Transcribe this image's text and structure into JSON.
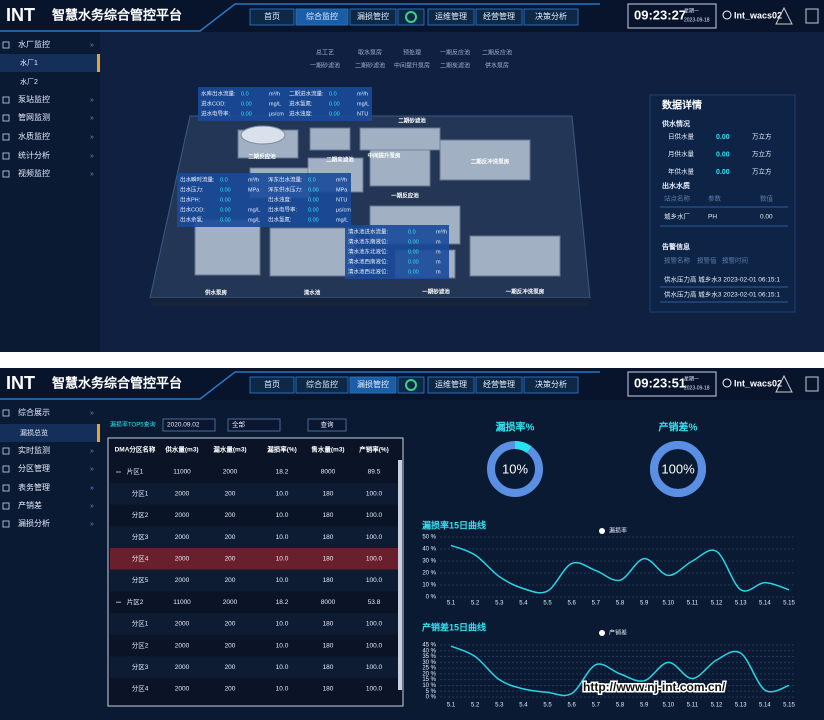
{
  "top": {
    "header": {
      "logo": "INT",
      "title": "智慧水务综合管控平台",
      "nav": [
        "首页",
        "综合监控",
        "漏损管控",
        "运维管理",
        "经营管理",
        "决策分析"
      ],
      "time": "09:23:27",
      "weekday": "星期一",
      "date": "2023-09-18",
      "user": "Int_wacs02"
    },
    "sidebar": {
      "items": [
        "水厂监控",
        "泵站监控",
        "管网监测",
        "水质监控",
        "统计分析",
        "视频监控"
      ],
      "sub": [
        "水厂1",
        "水厂2"
      ]
    },
    "process_tabs": [
      "总工艺",
      "取水泵房",
      "预处理",
      "一期反应池",
      "二期反应池",
      "一期砂滤池",
      "二期砂滤池",
      "中间提升泵房",
      "二期炭滤池",
      "供水泵房"
    ],
    "scene_labels": [
      "供水泵房",
      "清水池",
      "一期砂滤池",
      "一期反冲洗泵房",
      "二期砂滤池",
      "二期反应池",
      "一期反应池",
      "中间提升泵房",
      "二期炭滤池",
      "二期反冲洗泵房"
    ],
    "overlays": [
      {
        "cols": [
          [
            [
              "水库出水流量:",
              "0.0",
              "m³/h"
            ],
            [
              "进水COD:",
              "0.00",
              "mg/L"
            ],
            [
              "进水电导率:",
              "0.00",
              "μs/cm"
            ]
          ],
          [
            [
              "二期进水流量:",
              "0.0",
              "m³/h"
            ],
            [
              "进水氯氮:",
              "0.00",
              "mg/L"
            ],
            [
              "进水浊度:",
              "0.00",
              "NTU"
            ]
          ]
        ]
      },
      {
        "cols": [
          [
            [
              "出水瞬时流量:",
              "0.0",
              "m³/h"
            ],
            [
              "出水压力:",
              "0.00",
              "MPa"
            ],
            [
              "出水PH:",
              "0.00",
              ""
            ],
            [
              "出水COD:",
              "0.00",
              "mg/L"
            ],
            [
              "出水余氯:",
              "0.00",
              "mg/L"
            ]
          ],
          [
            [
              "浑东出水流量:",
              "0.0",
              "m³/h"
            ],
            [
              "浑东供水压力:",
              "0.00",
              "MPa"
            ],
            [
              "出水浊度:",
              "0.00",
              "NTU"
            ],
            [
              "出水电导率:",
              "0.00",
              "μs/cm"
            ],
            [
              "出水氯氮:",
              "0.00",
              "mg/L"
            ]
          ]
        ]
      },
      {
        "cols": [
          [
            [
              "清水池进水流量:",
              "0.0",
              "m³/h"
            ],
            [
              "清水池东南液位:",
              "0.00",
              "m"
            ],
            [
              "清水池东北液位:",
              "0.00",
              "m"
            ],
            [
              "清水池西南液位:",
              "0.00",
              "m"
            ],
            [
              "清水池西北液位:",
              "0.00",
              "m"
            ]
          ]
        ]
      }
    ],
    "details": {
      "title": "数据详情",
      "supply_title": "供水情况",
      "supply": [
        [
          "日供水量",
          "0.00",
          "万立方"
        ],
        [
          "月供水量",
          "0.00",
          "万立方"
        ],
        [
          "年供水量",
          "0.00",
          "万立方"
        ]
      ],
      "outlet_title": "出水水质",
      "outlet_headers": [
        "站点名称",
        "参数",
        "数值"
      ],
      "outlet_rows": [
        [
          "城乡水厂",
          "PH",
          "0.00"
        ]
      ],
      "alarm_title": "告警信息",
      "alarm_headers": [
        "报警名称",
        "报警值",
        "报警时间"
      ],
      "alarms": [
        "供水压力高 城乡水3 2023-02-01 06:15:1",
        "供水压力高 城乡水3 2023-02-01 06:15:1"
      ]
    }
  },
  "bottom": {
    "header": {
      "logo": "INT",
      "title": "智慧水务综合管控平台",
      "nav": [
        "首页",
        "综合监控",
        "漏损管控",
        "运维管理",
        "经营管理",
        "决策分析"
      ],
      "time": "09:23:51",
      "weekday": "星期一",
      "date": "2023-09-18",
      "user": "Int_wacs02"
    },
    "sidebar": {
      "items": [
        "综合展示",
        "实时监测",
        "分区管理",
        "表务管理",
        "产销差",
        "漏损分析"
      ],
      "sub": [
        "漏损总览"
      ]
    },
    "filter": {
      "label": "漏损率TOP5查询",
      "date": "2020.09.02",
      "select": "全部",
      "button": "查询"
    },
    "table": {
      "headers": [
        "DMA分区名称",
        "供水量(m3)",
        "漏水量(m3)",
        "漏损率(%)",
        "售水量(m3)",
        "产销率(%)"
      ],
      "highlight_row": 4,
      "rows": [
        {
          "group": true,
          "cells": [
            "片区1",
            "11000",
            "2000",
            "18.2",
            "8000",
            "89.5"
          ]
        },
        {
          "group": false,
          "cells": [
            "分区1",
            "2000",
            "200",
            "10.0",
            "180",
            "100.0"
          ]
        },
        {
          "group": false,
          "cells": [
            "分区2",
            "2000",
            "200",
            "10.0",
            "180",
            "100.0"
          ]
        },
        {
          "group": false,
          "cells": [
            "分区3",
            "2000",
            "200",
            "10.0",
            "180",
            "100.0"
          ]
        },
        {
          "group": false,
          "cells": [
            "分区4",
            "2000",
            "200",
            "10.0",
            "180",
            "100.0"
          ]
        },
        {
          "group": false,
          "cells": [
            "分区5",
            "2000",
            "200",
            "10.0",
            "180",
            "100.0"
          ]
        },
        {
          "group": true,
          "cells": [
            "片区2",
            "11000",
            "2000",
            "18.2",
            "8000",
            "53.8"
          ]
        },
        {
          "group": false,
          "cells": [
            "分区1",
            "2000",
            "200",
            "10.0",
            "180",
            "100.0"
          ]
        },
        {
          "group": false,
          "cells": [
            "分区2",
            "2000",
            "200",
            "10.0",
            "180",
            "100.0"
          ]
        },
        {
          "group": false,
          "cells": [
            "分区3",
            "2000",
            "200",
            "10.0",
            "180",
            "100.0"
          ]
        },
        {
          "group": false,
          "cells": [
            "分区4",
            "2000",
            "200",
            "10.0",
            "180",
            "100.0"
          ]
        }
      ]
    },
    "rates": [
      {
        "title": "漏损率%",
        "value": 10,
        "value_label": "10%",
        "color": "#27e3f2",
        "track": "#5a8fe3"
      },
      {
        "title": "产销差%",
        "value": 100,
        "value_label": "100%",
        "color": "#5a8fe3",
        "track": "#5a8fe3"
      }
    ],
    "curves": [
      {
        "type": "line",
        "title": "漏损率15日曲线",
        "legend": "漏损率",
        "color": "#2ad4e6",
        "x": [
          "5.1",
          "5.2",
          "5.3",
          "5.4",
          "5.5",
          "5.6",
          "5.7",
          "5.8",
          "5.9",
          "5.10",
          "5.11",
          "5.12",
          "5.13",
          "5.14",
          "5.15"
        ],
        "values": [
          43,
          35,
          17,
          7,
          5,
          28,
          22,
          14,
          32,
          18,
          30,
          38,
          6,
          12,
          6
        ],
        "ylim": [
          0,
          50
        ],
        "yticks": [
          {
            "value": 0,
            "label": "0 %"
          },
          {
            "value": 10,
            "label": "10 %"
          },
          {
            "value": 20,
            "label": "20 %"
          },
          {
            "value": 30,
            "label": "30 %"
          },
          {
            "value": 40,
            "label": "40 %"
          },
          {
            "value": 50,
            "label": "50 %"
          }
        ]
      },
      {
        "type": "line",
        "title": "产销差15日曲线",
        "legend": "产销差",
        "color": "#2ad4e6",
        "x": [
          "5.1",
          "5.2",
          "5.3",
          "5.4",
          "5.5",
          "5.6",
          "5.7",
          "5.8",
          "5.9",
          "5.10",
          "5.11",
          "5.12",
          "5.13",
          "5.14",
          "5.15"
        ],
        "values": [
          44,
          35,
          15,
          7,
          4,
          3,
          28,
          20,
          14,
          30,
          16,
          32,
          38,
          6,
          10
        ],
        "ylim": [
          0,
          45
        ],
        "yticks": [
          {
            "value": 0,
            "label": "0 %"
          },
          {
            "value": 5,
            "label": "5 %"
          },
          {
            "value": 10,
            "label": "10 %"
          },
          {
            "value": 15,
            "label": "15 %"
          },
          {
            "value": 20,
            "label": "20 %"
          },
          {
            "value": 25,
            "label": "25 %"
          },
          {
            "value": 30,
            "label": "30 %"
          },
          {
            "value": 35,
            "label": "35 %"
          },
          {
            "value": 40,
            "label": "40 %"
          },
          {
            "value": 45,
            "label": "45 %"
          }
        ]
      }
    ]
  },
  "watermark": "http://www.nj-int.com.cn/"
}
